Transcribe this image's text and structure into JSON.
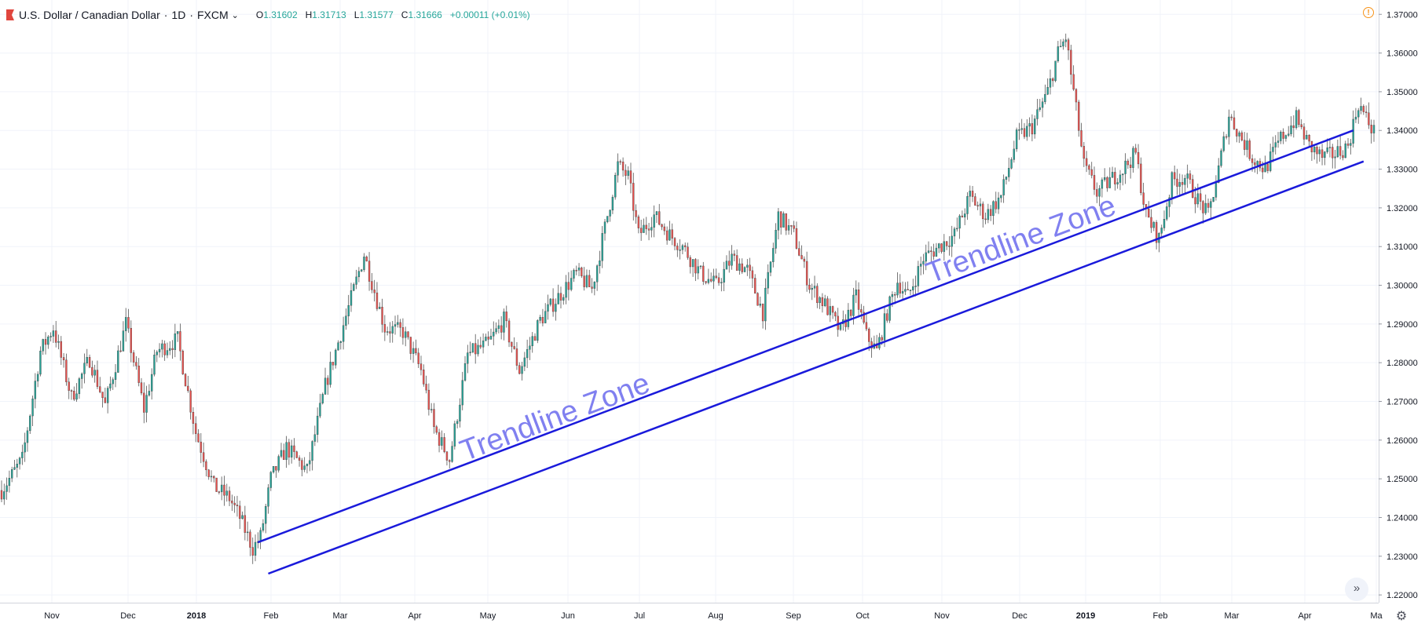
{
  "header": {
    "symbol": "U.S. Dollar / Canadian Dollar",
    "interval": "1D",
    "exchange": "FXCM",
    "open_label": "O",
    "open": "1.31602",
    "high_label": "H",
    "high": "1.31713",
    "low_label": "L",
    "low": "1.31577",
    "close_label": "C",
    "close": "1.31666",
    "change": "+0.00011 (+0.01%)"
  },
  "colors": {
    "up": "#26a69a",
    "down": "#ef5350",
    "grid": "#f0f3fa",
    "trendline": "#1a1adb",
    "annotation": "#8080f0"
  },
  "chart_data": {
    "type": "candlestick",
    "symbol": "USDCAD",
    "timeframe": "1D",
    "ylim": [
      1.218,
      1.3737
    ],
    "yticks": [
      "1.22000",
      "1.23000",
      "1.24000",
      "1.25000",
      "1.26000",
      "1.27000",
      "1.28000",
      "1.29000",
      "1.30000",
      "1.31000",
      "1.32000",
      "1.33000",
      "1.34000",
      "1.35000",
      "1.36000",
      "1.37000"
    ],
    "xticks": [
      "Nov",
      "Dec",
      "2018",
      "Feb",
      "Mar",
      "Apr",
      "May",
      "Jun",
      "Jul",
      "Aug",
      "Sep",
      "Oct",
      "Nov",
      "Dec",
      "2019",
      "Feb",
      "Mar",
      "Apr",
      "Ma"
    ],
    "price_path": [
      [
        0,
        1.247
      ],
      [
        8,
        1.255
      ],
      [
        15,
        1.283
      ],
      [
        20,
        1.289
      ],
      [
        27,
        1.271
      ],
      [
        34,
        1.281
      ],
      [
        40,
        1.269
      ],
      [
        48,
        1.29
      ],
      [
        55,
        1.268
      ],
      [
        60,
        1.283
      ],
      [
        68,
        1.286
      ],
      [
        75,
        1.262
      ],
      [
        82,
        1.248
      ],
      [
        88,
        1.245
      ],
      [
        92,
        1.24
      ],
      [
        97,
        1.232
      ],
      [
        100,
        1.235
      ],
      [
        104,
        1.25
      ],
      [
        110,
        1.258
      ],
      [
        118,
        1.252
      ],
      [
        125,
        1.274
      ],
      [
        133,
        1.292
      ],
      [
        140,
        1.308
      ],
      [
        148,
        1.289
      ],
      [
        155,
        1.288
      ],
      [
        162,
        1.278
      ],
      [
        167,
        1.263
      ],
      [
        173,
        1.255
      ],
      [
        180,
        1.282
      ],
      [
        188,
        1.285
      ],
      [
        194,
        1.291
      ],
      [
        200,
        1.278
      ],
      [
        208,
        1.291
      ],
      [
        215,
        1.297
      ],
      [
        222,
        1.303
      ],
      [
        228,
        1.299
      ],
      [
        234,
        1.318
      ],
      [
        238,
        1.331
      ],
      [
        242,
        1.328
      ],
      [
        246,
        1.313
      ],
      [
        252,
        1.318
      ],
      [
        258,
        1.313
      ],
      [
        263,
        1.31
      ],
      [
        270,
        1.303
      ],
      [
        276,
        1.3
      ],
      [
        282,
        1.307
      ],
      [
        288,
        1.304
      ],
      [
        294,
        1.293
      ],
      [
        300,
        1.318
      ],
      [
        306,
        1.313
      ],
      [
        312,
        1.3
      ],
      [
        318,
        1.295
      ],
      [
        324,
        1.288
      ],
      [
        330,
        1.297
      ],
      [
        334,
        1.287
      ],
      [
        338,
        1.283
      ],
      [
        342,
        1.293
      ],
      [
        346,
        1.301
      ],
      [
        350,
        1.297
      ],
      [
        356,
        1.307
      ],
      [
        362,
        1.31
      ],
      [
        368,
        1.313
      ],
      [
        374,
        1.323
      ],
      [
        380,
        1.318
      ],
      [
        386,
        1.323
      ],
      [
        392,
        1.338
      ],
      [
        398,
        1.341
      ],
      [
        404,
        1.35
      ],
      [
        408,
        1.36
      ],
      [
        411,
        1.364
      ],
      [
        414,
        1.35
      ],
      [
        418,
        1.331
      ],
      [
        423,
        1.324
      ],
      [
        428,
        1.327
      ],
      [
        433,
        1.33
      ],
      [
        438,
        1.334
      ],
      [
        442,
        1.318
      ],
      [
        447,
        1.312
      ],
      [
        452,
        1.327
      ],
      [
        457,
        1.328
      ],
      [
        462,
        1.322
      ],
      [
        466,
        1.318
      ],
      [
        470,
        1.33
      ],
      [
        474,
        1.344
      ],
      [
        478,
        1.339
      ],
      [
        483,
        1.333
      ],
      [
        488,
        1.33
      ],
      [
        494,
        1.338
      ],
      [
        500,
        1.343
      ],
      [
        505,
        1.336
      ],
      [
        510,
        1.333
      ],
      [
        515,
        1.334
      ],
      [
        520,
        1.336
      ],
      [
        524,
        1.347
      ],
      [
        527,
        1.343
      ],
      [
        530,
        1.3396
      ]
    ],
    "trendlines": [
      {
        "x1": 99,
        "y1": 1.2336,
        "x2": 522,
        "y2": 1.34
      },
      {
        "x1": 103,
        "y1": 1.2255,
        "x2": 526,
        "y2": 1.332
      }
    ],
    "annotations": [
      {
        "text": "Trendline Zone",
        "x": 215,
        "y": 1.2636
      },
      {
        "text": "Trendline Zone",
        "x": 395,
        "y": 1.3095
      }
    ]
  }
}
